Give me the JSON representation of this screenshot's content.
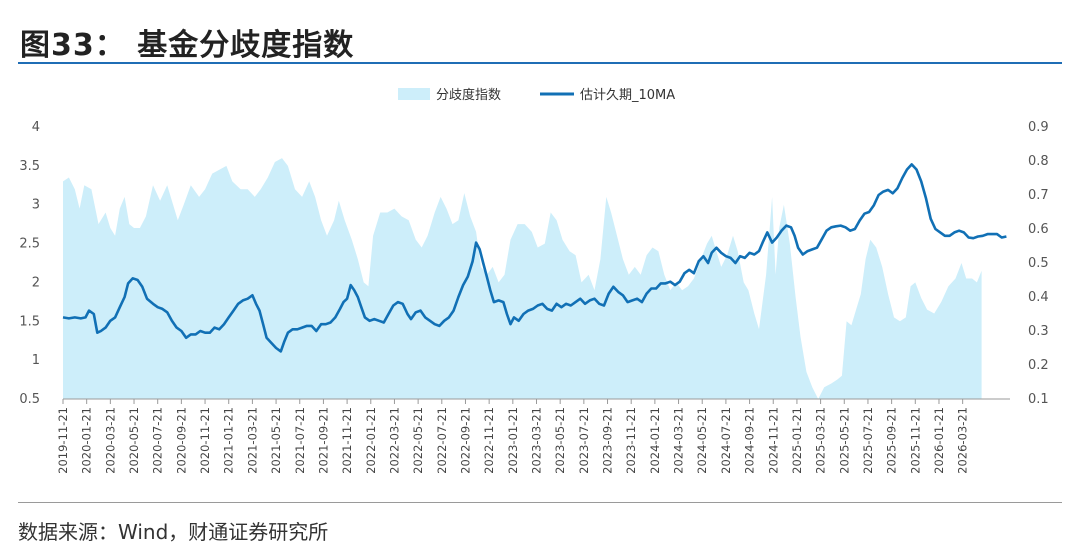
{
  "figure": {
    "title": "图33：   基金分歧度指数",
    "source": "数据来源：Wind，财通证券研究所"
  },
  "chart_data": {
    "type": "area+line",
    "title": "基金分歧度指数",
    "legend": {
      "position": "top-center",
      "area_label": "分歧度指数",
      "line_label": "估计久期_10MA"
    },
    "colors": {
      "area": "#cdeefa",
      "line": "#1170b5",
      "axis": "#9a9a9a"
    },
    "left_axis": {
      "min": 0.5,
      "max": 4,
      "ticks": [
        "0.5",
        "1",
        "1.5",
        "2",
        "2.5",
        "3",
        "3.5",
        "4"
      ]
    },
    "right_axis": {
      "min": 0.1,
      "max": 0.9,
      "ticks": [
        "0.1",
        "0.2",
        "0.3",
        "0.4",
        "0.5",
        "0.6",
        "0.7",
        "0.8",
        "0.9"
      ]
    },
    "x_start": "2019-11",
    "x_end": "2026-03",
    "x_ticks": [
      "2019-11-21",
      "2020-01-21",
      "2020-03-21",
      "2020-05-21",
      "2020-07-21",
      "2020-09-21",
      "2020-11-21",
      "2021-01-21",
      "2021-03-21",
      "2021-05-21",
      "2021-07-21",
      "2021-09-21",
      "2021-11-21",
      "2022-01-21",
      "2022-03-21",
      "2022-05-21",
      "2022-07-21",
      "2022-09-21",
      "2022-11-21",
      "2023-01-21",
      "2023-03-21",
      "2023-05-21",
      "2023-07-21",
      "2023-09-21",
      "2023-11-21",
      "2024-01-21",
      "2024-03-21",
      "2024-05-21",
      "2024-07-21",
      "2024-09-21",
      "2024-11-21",
      "2025-01-21",
      "2025-03-21",
      "2025-05-21",
      "2025-07-21",
      "2025-09-21",
      "2025-11-21",
      "2026-01-21",
      "2026-03-21"
    ],
    "divergence_index": [
      [
        0,
        3.3
      ],
      [
        0.5,
        3.35
      ],
      [
        1,
        3.2
      ],
      [
        1.4,
        2.95
      ],
      [
        1.8,
        3.25
      ],
      [
        2.4,
        3.2
      ],
      [
        3,
        2.75
      ],
      [
        3.6,
        2.9
      ],
      [
        4,
        2.7
      ],
      [
        4.4,
        2.6
      ],
      [
        4.8,
        2.95
      ],
      [
        5.2,
        3.1
      ],
      [
        5.6,
        2.75
      ],
      [
        6,
        2.7
      ],
      [
        6.5,
        2.7
      ],
      [
        7,
        2.85
      ],
      [
        7.6,
        3.25
      ],
      [
        8.2,
        3.05
      ],
      [
        8.8,
        3.25
      ],
      [
        9.3,
        3.0
      ],
      [
        9.7,
        2.8
      ],
      [
        10.2,
        3.0
      ],
      [
        10.8,
        3.25
      ],
      [
        11.5,
        3.1
      ],
      [
        12,
        3.2
      ],
      [
        12.6,
        3.4
      ],
      [
        13.2,
        3.45
      ],
      [
        13.8,
        3.5
      ],
      [
        14.3,
        3.3
      ],
      [
        15,
        3.2
      ],
      [
        15.6,
        3.2
      ],
      [
        16.2,
        3.1
      ],
      [
        16.7,
        3.2
      ],
      [
        17.3,
        3.35
      ],
      [
        17.9,
        3.55
      ],
      [
        18.5,
        3.6
      ],
      [
        19,
        3.5
      ],
      [
        19.6,
        3.2
      ],
      [
        20.2,
        3.1
      ],
      [
        20.8,
        3.3
      ],
      [
        21.3,
        3.1
      ],
      [
        21.8,
        2.8
      ],
      [
        22.3,
        2.6
      ],
      [
        22.9,
        2.8
      ],
      [
        23.3,
        3.05
      ],
      [
        23.8,
        2.8
      ],
      [
        24.4,
        2.55
      ],
      [
        24.9,
        2.3
      ],
      [
        25.4,
        2.0
      ],
      [
        25.8,
        1.95
      ],
      [
        26.2,
        2.6
      ],
      [
        26.8,
        2.9
      ],
      [
        27.4,
        2.9
      ],
      [
        28,
        2.95
      ],
      [
        28.6,
        2.85
      ],
      [
        29.2,
        2.8
      ],
      [
        29.8,
        2.55
      ],
      [
        30.3,
        2.45
      ],
      [
        30.8,
        2.6
      ],
      [
        31.4,
        2.9
      ],
      [
        31.9,
        3.1
      ],
      [
        32.4,
        2.95
      ],
      [
        32.9,
        2.75
      ],
      [
        33.4,
        2.8
      ],
      [
        33.9,
        3.15
      ],
      [
        34.4,
        2.85
      ],
      [
        34.9,
        2.65
      ],
      [
        35.3,
        2.2
      ],
      [
        35.8,
        2.1
      ],
      [
        36.3,
        2.2
      ],
      [
        36.8,
        2.0
      ],
      [
        37.3,
        2.1
      ],
      [
        37.8,
        2.55
      ],
      [
        38.4,
        2.75
      ],
      [
        39,
        2.75
      ],
      [
        39.6,
        2.65
      ],
      [
        40.1,
        2.45
      ],
      [
        40.7,
        2.5
      ],
      [
        41.2,
        2.9
      ],
      [
        41.7,
        2.8
      ],
      [
        42.2,
        2.55
      ],
      [
        42.8,
        2.4
      ],
      [
        43.3,
        2.35
      ],
      [
        43.8,
        2.0
      ],
      [
        44.4,
        2.1
      ],
      [
        44.9,
        1.9
      ],
      [
        45.4,
        2.3
      ],
      [
        45.9,
        3.1
      ],
      [
        46.3,
        2.9
      ],
      [
        46.8,
        2.6
      ],
      [
        47.3,
        2.3
      ],
      [
        47.8,
        2.1
      ],
      [
        48.3,
        2.2
      ],
      [
        48.8,
        2.1
      ],
      [
        49.3,
        2.35
      ],
      [
        49.8,
        2.45
      ],
      [
        50.3,
        2.4
      ],
      [
        50.8,
        2.1
      ],
      [
        51.3,
        1.9
      ],
      [
        51.8,
        2.0
      ],
      [
        52.3,
        1.9
      ],
      [
        52.8,
        1.95
      ],
      [
        53.3,
        2.05
      ],
      [
        53.9,
        2.3
      ],
      [
        54.4,
        2.5
      ],
      [
        54.8,
        2.6
      ],
      [
        55.2,
        2.4
      ],
      [
        55.6,
        2.2
      ],
      [
        56.1,
        2.35
      ],
      [
        56.6,
        2.6
      ],
      [
        57,
        2.4
      ],
      [
        57.5,
        2.0
      ],
      [
        57.9,
        1.9
      ],
      [
        58.4,
        1.6
      ],
      [
        58.8,
        1.4
      ],
      [
        59.4,
        2.1
      ],
      [
        59.9,
        3.1
      ],
      [
        60.2,
        2.1
      ],
      [
        60.5,
        2.7
      ],
      [
        60.9,
        3.0
      ],
      [
        61.4,
        2.5
      ],
      [
        61.9,
        1.8
      ],
      [
        62.3,
        1.3
      ],
      [
        62.8,
        0.85
      ],
      [
        63.3,
        0.65
      ],
      [
        63.8,
        0.5
      ],
      [
        64.3,
        0.65
      ],
      [
        64.9,
        0.7
      ],
      [
        65.4,
        0.75
      ],
      [
        65.8,
        0.8
      ],
      [
        66.2,
        1.5
      ],
      [
        66.6,
        1.45
      ],
      [
        67,
        1.65
      ],
      [
        67.4,
        1.85
      ],
      [
        67.8,
        2.3
      ],
      [
        68.2,
        2.55
      ],
      [
        68.7,
        2.45
      ],
      [
        69.2,
        2.2
      ],
      [
        69.7,
        1.85
      ],
      [
        70.2,
        1.55
      ],
      [
        70.7,
        1.5
      ],
      [
        71.2,
        1.55
      ],
      [
        71.6,
        1.95
      ],
      [
        72,
        2.0
      ],
      [
        72.5,
        1.8
      ],
      [
        73,
        1.65
      ],
      [
        73.6,
        1.6
      ],
      [
        74.2,
        1.75
      ],
      [
        74.8,
        1.95
      ],
      [
        75.4,
        2.05
      ],
      [
        75.9,
        2.25
      ],
      [
        76.3,
        2.05
      ],
      [
        76.8,
        2.05
      ],
      [
        77.2,
        2.0
      ],
      [
        77.6,
        2.15
      ]
    ],
    "estimated_duration_10ma": [
      [
        0,
        0.34
      ],
      [
        0.5,
        0.337
      ],
      [
        1,
        0.34
      ],
      [
        1.5,
        0.337
      ],
      [
        1.9,
        0.34
      ],
      [
        2.2,
        0.36
      ],
      [
        2.6,
        0.35
      ],
      [
        2.9,
        0.295
      ],
      [
        3.2,
        0.3
      ],
      [
        3.6,
        0.31
      ],
      [
        4,
        0.33
      ],
      [
        4.4,
        0.34
      ],
      [
        4.8,
        0.37
      ],
      [
        5.2,
        0.4
      ],
      [
        5.5,
        0.44
      ],
      [
        5.9,
        0.455
      ],
      [
        6.3,
        0.45
      ],
      [
        6.7,
        0.43
      ],
      [
        7.1,
        0.395
      ],
      [
        7.6,
        0.38
      ],
      [
        8,
        0.37
      ],
      [
        8.4,
        0.365
      ],
      [
        8.8,
        0.355
      ],
      [
        9.2,
        0.33
      ],
      [
        9.6,
        0.31
      ],
      [
        10,
        0.3
      ],
      [
        10.4,
        0.28
      ],
      [
        10.8,
        0.29
      ],
      [
        11.2,
        0.29
      ],
      [
        11.6,
        0.3
      ],
      [
        12,
        0.295
      ],
      [
        12.4,
        0.295
      ],
      [
        12.8,
        0.31
      ],
      [
        13.2,
        0.305
      ],
      [
        13.6,
        0.32
      ],
      [
        14,
        0.34
      ],
      [
        14.4,
        0.36
      ],
      [
        14.8,
        0.38
      ],
      [
        15.2,
        0.39
      ],
      [
        15.6,
        0.395
      ],
      [
        16,
        0.405
      ],
      [
        16.3,
        0.38
      ],
      [
        16.6,
        0.36
      ],
      [
        16.9,
        0.32
      ],
      [
        17.2,
        0.28
      ],
      [
        17.6,
        0.265
      ],
      [
        18,
        0.25
      ],
      [
        18.4,
        0.24
      ],
      [
        18.7,
        0.27
      ],
      [
        19,
        0.295
      ],
      [
        19.4,
        0.305
      ],
      [
        19.8,
        0.305
      ],
      [
        20.2,
        0.31
      ],
      [
        20.6,
        0.315
      ],
      [
        21,
        0.315
      ],
      [
        21.4,
        0.3
      ],
      [
        21.8,
        0.32
      ],
      [
        22.2,
        0.32
      ],
      [
        22.6,
        0.325
      ],
      [
        23,
        0.34
      ],
      [
        23.4,
        0.365
      ],
      [
        23.7,
        0.385
      ],
      [
        24,
        0.395
      ],
      [
        24.3,
        0.435
      ],
      [
        24.6,
        0.42
      ],
      [
        24.9,
        0.4
      ],
      [
        25.2,
        0.37
      ],
      [
        25.5,
        0.34
      ],
      [
        25.9,
        0.33
      ],
      [
        26.3,
        0.335
      ],
      [
        26.7,
        0.33
      ],
      [
        27.1,
        0.325
      ],
      [
        27.5,
        0.35
      ],
      [
        27.9,
        0.375
      ],
      [
        28.3,
        0.385
      ],
      [
        28.7,
        0.38
      ],
      [
        29.1,
        0.35
      ],
      [
        29.4,
        0.335
      ],
      [
        29.8,
        0.355
      ],
      [
        30.2,
        0.36
      ],
      [
        30.6,
        0.34
      ],
      [
        31,
        0.33
      ],
      [
        31.4,
        0.32
      ],
      [
        31.8,
        0.315
      ],
      [
        32.2,
        0.33
      ],
      [
        32.6,
        0.34
      ],
      [
        33,
        0.36
      ],
      [
        33.4,
        0.4
      ],
      [
        33.8,
        0.435
      ],
      [
        34.2,
        0.46
      ],
      [
        34.6,
        0.505
      ],
      [
        34.9,
        0.56
      ],
      [
        35.2,
        0.54
      ],
      [
        35.5,
        0.5
      ],
      [
        35.8,
        0.46
      ],
      [
        36.1,
        0.42
      ],
      [
        36.4,
        0.385
      ],
      [
        36.8,
        0.39
      ],
      [
        37.2,
        0.385
      ],
      [
        37.5,
        0.35
      ],
      [
        37.8,
        0.32
      ],
      [
        38.1,
        0.34
      ],
      [
        38.5,
        0.33
      ],
      [
        38.9,
        0.35
      ],
      [
        39.3,
        0.36
      ],
      [
        39.7,
        0.365
      ],
      [
        40.1,
        0.375
      ],
      [
        40.5,
        0.38
      ],
      [
        40.9,
        0.365
      ],
      [
        41.3,
        0.36
      ],
      [
        41.7,
        0.38
      ],
      [
        42.1,
        0.37
      ],
      [
        42.5,
        0.38
      ],
      [
        42.9,
        0.375
      ],
      [
        43.3,
        0.385
      ],
      [
        43.7,
        0.395
      ],
      [
        44.1,
        0.38
      ],
      [
        44.5,
        0.39
      ],
      [
        44.9,
        0.395
      ],
      [
        45.3,
        0.38
      ],
      [
        45.7,
        0.375
      ],
      [
        46.1,
        0.41
      ],
      [
        46.5,
        0.43
      ],
      [
        46.9,
        0.415
      ],
      [
        47.3,
        0.405
      ],
      [
        47.7,
        0.385
      ],
      [
        48.1,
        0.39
      ],
      [
        48.5,
        0.395
      ],
      [
        48.9,
        0.385
      ],
      [
        49.3,
        0.41
      ],
      [
        49.7,
        0.425
      ],
      [
        50.1,
        0.425
      ],
      [
        50.5,
        0.44
      ],
      [
        50.9,
        0.44
      ],
      [
        51.3,
        0.445
      ],
      [
        51.7,
        0.435
      ],
      [
        52.1,
        0.445
      ],
      [
        52.5,
        0.47
      ],
      [
        52.9,
        0.48
      ],
      [
        53.3,
        0.47
      ],
      [
        53.7,
        0.505
      ],
      [
        54.1,
        0.52
      ],
      [
        54.5,
        0.5
      ],
      [
        54.8,
        0.53
      ],
      [
        55.2,
        0.545
      ],
      [
        55.6,
        0.53
      ],
      [
        56,
        0.52
      ],
      [
        56.4,
        0.515
      ],
      [
        56.8,
        0.5
      ],
      [
        57.2,
        0.52
      ],
      [
        57.6,
        0.515
      ],
      [
        58,
        0.53
      ],
      [
        58.4,
        0.525
      ],
      [
        58.8,
        0.535
      ],
      [
        59.1,
        0.56
      ],
      [
        59.5,
        0.59
      ],
      [
        59.9,
        0.56
      ],
      [
        60.3,
        0.575
      ],
      [
        60.7,
        0.595
      ],
      [
        61.1,
        0.61
      ],
      [
        61.5,
        0.605
      ],
      [
        61.8,
        0.58
      ],
      [
        62.1,
        0.545
      ],
      [
        62.5,
        0.525
      ],
      [
        62.9,
        0.535
      ],
      [
        63.3,
        0.54
      ],
      [
        63.7,
        0.545
      ],
      [
        64.1,
        0.57
      ],
      [
        64.5,
        0.595
      ],
      [
        64.9,
        0.605
      ],
      [
        65.3,
        0.608
      ],
      [
        65.7,
        0.61
      ],
      [
        66.1,
        0.605
      ],
      [
        66.5,
        0.595
      ],
      [
        66.9,
        0.6
      ],
      [
        67.3,
        0.625
      ],
      [
        67.7,
        0.645
      ],
      [
        68.1,
        0.65
      ],
      [
        68.5,
        0.67
      ],
      [
        68.9,
        0.7
      ],
      [
        69.3,
        0.71
      ],
      [
        69.7,
        0.715
      ],
      [
        70.1,
        0.705
      ],
      [
        70.5,
        0.72
      ],
      [
        70.9,
        0.75
      ],
      [
        71.3,
        0.775
      ],
      [
        71.7,
        0.79
      ],
      [
        72.1,
        0.775
      ],
      [
        72.5,
        0.74
      ],
      [
        72.9,
        0.69
      ],
      [
        73.3,
        0.63
      ],
      [
        73.7,
        0.6
      ],
      [
        74.1,
        0.59
      ],
      [
        74.5,
        0.58
      ],
      [
        74.9,
        0.58
      ],
      [
        75.3,
        0.59
      ],
      [
        75.7,
        0.595
      ],
      [
        76.1,
        0.59
      ],
      [
        76.5,
        0.575
      ],
      [
        76.9,
        0.573
      ],
      [
        77.3,
        0.578
      ],
      [
        77.7,
        0.58
      ],
      [
        78.1,
        0.585
      ],
      [
        78.5,
        0.585
      ],
      [
        78.9,
        0.585
      ],
      [
        79.3,
        0.575
      ],
      [
        79.7,
        0.578
      ]
    ]
  }
}
